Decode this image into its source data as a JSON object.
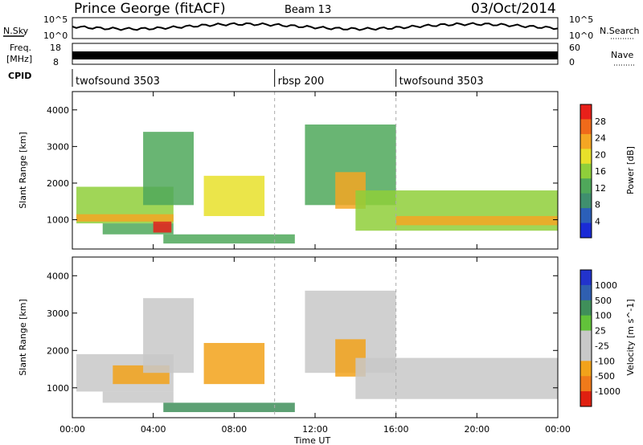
{
  "header": {
    "station": "Prince George (fitACF)",
    "beam": "Beam 13",
    "date": "03/Oct/2014"
  },
  "panels": {
    "nsky": {
      "left_label": "N.Sky",
      "right_label": "N.Search",
      "left_ticks": [
        "10^5",
        "10^0"
      ],
      "right_ticks": [
        "10^5",
        "10^0"
      ]
    },
    "freq": {
      "left_label_1": "Freq.",
      "left_label_2": "[MHz]",
      "right_label": "Nave",
      "left_ticks": [
        "18",
        "8"
      ],
      "right_ticks": [
        "60",
        "0"
      ]
    },
    "cpid": {
      "label": "CPID",
      "segments": [
        {
          "name": "twofsound 3503",
          "start": 0,
          "end": 10
        },
        {
          "name": "rbsp 200",
          "start": 10,
          "end": 16
        },
        {
          "name": "twofsound 3503",
          "start": 16,
          "end": 24
        }
      ]
    }
  },
  "chart_data": [
    {
      "type": "heatmap",
      "title": "",
      "ylabel": "Slant Range [km]",
      "xlabel": "Time UT",
      "xlim": [
        0,
        24
      ],
      "ylim": [
        200,
        4500
      ],
      "x_ticks": [
        "00:00",
        "04:00",
        "08:00",
        "12:00",
        "16:00",
        "20:00",
        "00:00"
      ],
      "y_ticks": [
        "1000",
        "2000",
        "3000",
        "4000"
      ],
      "colorbar": {
        "label": "Power [dB]",
        "ticks": [
          "4",
          "8",
          "12",
          "16",
          "20",
          "24",
          "28"
        ],
        "range": [
          0,
          30
        ]
      },
      "regions": [
        {
          "t": [
            0.2,
            5.0
          ],
          "r": [
            900,
            1900
          ],
          "level": 14
        },
        {
          "t": [
            0.2,
            5.0
          ],
          "r": [
            950,
            1150
          ],
          "level": 22
        },
        {
          "t": [
            1.5,
            5.0
          ],
          "r": [
            600,
            900
          ],
          "level": 12
        },
        {
          "t": [
            4.0,
            4.9
          ],
          "r": [
            650,
            950
          ],
          "level": 28
        },
        {
          "t": [
            3.5,
            6.0
          ],
          "r": [
            1400,
            3400
          ],
          "level": 12
        },
        {
          "t": [
            4.5,
            11.0
          ],
          "r": [
            350,
            600
          ],
          "level": 10
        },
        {
          "t": [
            6.5,
            9.5
          ],
          "r": [
            1100,
            2200
          ],
          "level": 18
        },
        {
          "t": [
            11.5,
            16.0
          ],
          "r": [
            1400,
            3600
          ],
          "level": 10
        },
        {
          "t": [
            13.0,
            14.5
          ],
          "r": [
            1300,
            2300
          ],
          "level": 20
        },
        {
          "t": [
            14.0,
            24.0
          ],
          "r": [
            700,
            1800
          ],
          "level": 14
        },
        {
          "t": [
            16.0,
            24.0
          ],
          "r": [
            850,
            1100
          ],
          "level": 22
        }
      ]
    },
    {
      "type": "heatmap",
      "title": "",
      "ylabel": "Slant Range [km]",
      "xlabel": "Time UT",
      "xlim": [
        0,
        24
      ],
      "ylim": [
        200,
        4500
      ],
      "x_ticks": [
        "00:00",
        "04:00",
        "08:00",
        "12:00",
        "16:00",
        "20:00",
        "00:00"
      ],
      "y_ticks": [
        "1000",
        "2000",
        "3000",
        "4000"
      ],
      "colorbar": {
        "label": "Velocity [m s^-1]",
        "ticks": [
          "1000",
          "500",
          "100",
          "25",
          "-25",
          "-100",
          "-500",
          "-1000"
        ]
      },
      "regions": [
        {
          "t": [
            0.2,
            5.0
          ],
          "r": [
            900,
            1900
          ],
          "level": 0
        },
        {
          "t": [
            2.0,
            4.8
          ],
          "r": [
            1100,
            1600
          ],
          "level": -200
        },
        {
          "t": [
            1.5,
            5.0
          ],
          "r": [
            600,
            900
          ],
          "level": 0
        },
        {
          "t": [
            3.5,
            6.0
          ],
          "r": [
            1400,
            3400
          ],
          "level": 0
        },
        {
          "t": [
            4.5,
            11.0
          ],
          "r": [
            350,
            600
          ],
          "level": 150
        },
        {
          "t": [
            6.5,
            9.5
          ],
          "r": [
            1100,
            2200
          ],
          "level": -300
        },
        {
          "t": [
            11.5,
            16.0
          ],
          "r": [
            1400,
            3600
          ],
          "level": 0
        },
        {
          "t": [
            13.0,
            14.5
          ],
          "r": [
            1300,
            2300
          ],
          "level": -300
        },
        {
          "t": [
            14.0,
            24.0
          ],
          "r": [
            700,
            1800
          ],
          "level": 0
        }
      ]
    }
  ],
  "palettes": {
    "power": [
      "#1a2bd6",
      "#2b5fb8",
      "#3f8f6e",
      "#4fa85a",
      "#8fcf3a",
      "#e8e02a",
      "#f5a623",
      "#f06a1a",
      "#e8201a"
    ],
    "velocity": [
      "#2233cc",
      "#2f5fb0",
      "#3f8f5a",
      "#62c23a",
      "#c8c8c8",
      "#c8c8c8",
      "#f2a21a",
      "#f07a1a",
      "#e02010"
    ]
  }
}
